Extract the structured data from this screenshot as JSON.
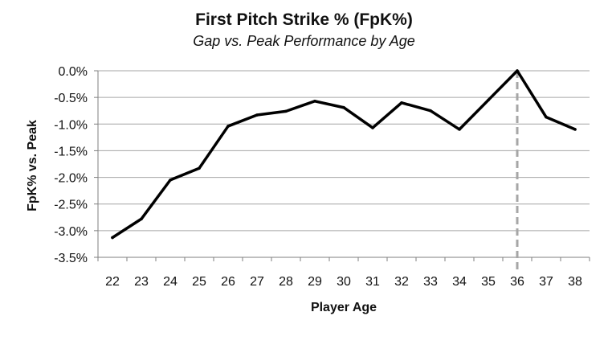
{
  "chart_data": {
    "type": "line",
    "title": "First Pitch Strike % (FpK%)",
    "subtitle": "Gap vs. Peak Performance by Age",
    "xlabel": "Player Age",
    "ylabel": "FpK% vs. Peak",
    "categories": [
      22,
      23,
      24,
      25,
      26,
      27,
      28,
      29,
      30,
      31,
      32,
      33,
      34,
      35,
      36,
      37,
      38
    ],
    "y_ticks": [
      "0.0%",
      "-0.5%",
      "-1.0%",
      "-1.5%",
      "-2.0%",
      "-2.5%",
      "-3.0%",
      "-3.5%"
    ],
    "ylim": [
      -3.5,
      0.0
    ],
    "grid": true,
    "series": [
      {
        "values": [
          -3.13,
          -2.78,
          -2.05,
          -1.83,
          -1.04,
          -0.83,
          -0.76,
          -0.57,
          -0.69,
          -1.07,
          -0.6,
          -0.75,
          -1.1,
          -0.55,
          0.0,
          -0.87,
          -1.1
        ],
        "color": "#000000"
      }
    ],
    "peak_marker": {
      "x": 36,
      "style": "dashed",
      "color": "#a6a6a6"
    }
  }
}
